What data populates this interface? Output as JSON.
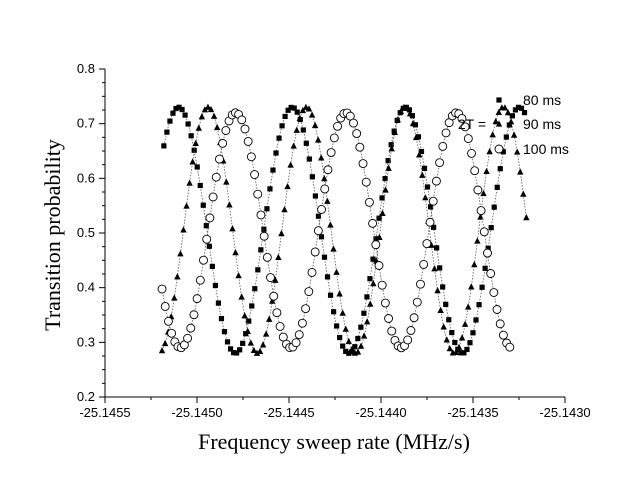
{
  "chart_data": {
    "type": "scatter",
    "xlabel": "Frequency sweep rate (MHz/s)",
    "ylabel": "Transition probability",
    "xlim": [
      -25.1455,
      -25.143
    ],
    "ylim": [
      0.2,
      0.8
    ],
    "x_ticks": [
      "-25.1455",
      "-25.1450",
      "-25.1445",
      "-25.1440",
      "-25.1435",
      "-25.1430"
    ],
    "y_ticks": [
      "0.2",
      "0.3",
      "0.4",
      "0.5",
      "0.6",
      "0.7",
      "0.8"
    ],
    "legend_prefix": "2T =",
    "legend_position": "top-right",
    "grid": false,
    "series": [
      {
        "name": "80 ms",
        "marker": "square",
        "color": "#000000",
        "x_start": -25.14518,
        "x_end": -25.14322,
        "count": 120,
        "period": 0.000617,
        "peak_x": -25.1451,
        "ymin": 0.28,
        "ymax": 0.73
      },
      {
        "name": "90 ms",
        "marker": "triangle",
        "color": "#000000",
        "x_start": -25.14519,
        "x_end": -25.14321,
        "count": 120,
        "period": 0.000535,
        "peak_x": -25.14494,
        "ymin": 0.28,
        "ymax": 0.73
      },
      {
        "name": "100 ms",
        "marker": "circle",
        "color": "#000000",
        "x_start": -25.14519,
        "x_end": -25.1433,
        "count": 110,
        "period": 0.0006,
        "peak_x": -25.14479,
        "ymin": 0.29,
        "ymax": 0.72
      }
    ]
  }
}
